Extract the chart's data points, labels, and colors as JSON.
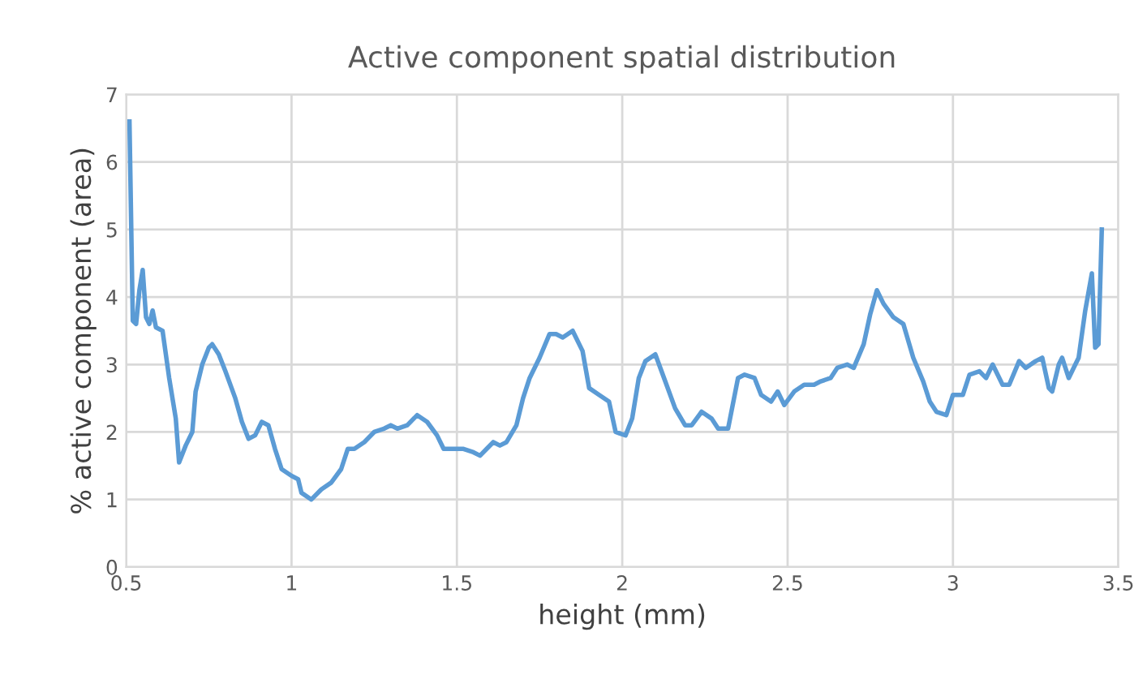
{
  "chart_data": {
    "type": "line",
    "title": "Active component spatial distribution",
    "xlabel": "height (mm)",
    "ylabel": "% active component (area)",
    "xlim": [
      0.5,
      3.5
    ],
    "xticks": [
      0.5,
      1,
      1.5,
      2,
      2.5,
      3,
      3.5
    ],
    "ylim": [
      0,
      7
    ],
    "yticks": [
      0,
      1,
      2,
      3,
      4,
      5,
      6,
      7
    ],
    "grid": true,
    "marker": "none",
    "line_style": "solid",
    "series": [
      {
        "color": "#5b9bd5",
        "x": [
          0.51,
          0.52,
          0.53,
          0.54,
          0.55,
          0.56,
          0.57,
          0.58,
          0.59,
          0.61,
          0.63,
          0.65,
          0.66,
          0.68,
          0.7,
          0.71,
          0.73,
          0.75,
          0.76,
          0.78,
          0.8,
          0.83,
          0.85,
          0.87,
          0.89,
          0.91,
          0.93,
          0.95,
          0.97,
          1.0,
          1.02,
          1.03,
          1.06,
          1.09,
          1.12,
          1.15,
          1.17,
          1.19,
          1.22,
          1.25,
          1.28,
          1.3,
          1.32,
          1.35,
          1.38,
          1.41,
          1.44,
          1.46,
          1.49,
          1.52,
          1.55,
          1.57,
          1.59,
          1.61,
          1.63,
          1.65,
          1.68,
          1.7,
          1.72,
          1.75,
          1.78,
          1.8,
          1.82,
          1.85,
          1.88,
          1.9,
          1.93,
          1.96,
          1.98,
          2.01,
          2.03,
          2.05,
          2.07,
          2.1,
          2.13,
          2.16,
          2.19,
          2.21,
          2.24,
          2.27,
          2.29,
          2.32,
          2.35,
          2.37,
          2.4,
          2.42,
          2.45,
          2.47,
          2.49,
          2.52,
          2.55,
          2.58,
          2.6,
          2.63,
          2.65,
          2.68,
          2.7,
          2.73,
          2.75,
          2.77,
          2.79,
          2.82,
          2.85,
          2.88,
          2.91,
          2.93,
          2.95,
          2.98,
          3.0,
          3.03,
          3.05,
          3.08,
          3.1,
          3.12,
          3.15,
          3.17,
          3.2,
          3.22,
          3.25,
          3.27,
          3.29,
          3.3,
          3.32,
          3.33,
          3.35,
          3.37,
          3.38,
          3.4,
          3.42,
          3.43,
          3.44,
          3.45
        ],
        "values": [
          6.6,
          3.65,
          3.6,
          4.1,
          4.4,
          3.7,
          3.6,
          3.8,
          3.55,
          3.5,
          2.8,
          2.2,
          1.55,
          1.8,
          2.0,
          2.6,
          3.0,
          3.25,
          3.3,
          3.15,
          2.9,
          2.5,
          2.15,
          1.9,
          1.95,
          2.15,
          2.1,
          1.75,
          1.45,
          1.35,
          1.3,
          1.1,
          1.0,
          1.15,
          1.25,
          1.45,
          1.75,
          1.75,
          1.85,
          2.0,
          2.05,
          2.1,
          2.05,
          2.1,
          2.25,
          2.15,
          1.95,
          1.75,
          1.75,
          1.75,
          1.7,
          1.65,
          1.75,
          1.85,
          1.8,
          1.85,
          2.1,
          2.5,
          2.8,
          3.1,
          3.45,
          3.45,
          3.4,
          3.5,
          3.2,
          2.65,
          2.55,
          2.45,
          2.0,
          1.95,
          2.2,
          2.8,
          3.05,
          3.15,
          2.75,
          2.35,
          2.1,
          2.1,
          2.3,
          2.2,
          2.05,
          2.05,
          2.8,
          2.85,
          2.8,
          2.55,
          2.45,
          2.6,
          2.4,
          2.6,
          2.7,
          2.7,
          2.75,
          2.8,
          2.95,
          3.0,
          2.95,
          3.3,
          3.75,
          4.1,
          3.9,
          3.7,
          3.6,
          3.1,
          2.75,
          2.45,
          2.3,
          2.25,
          2.55,
          2.55,
          2.85,
          2.9,
          2.8,
          3.0,
          2.7,
          2.7,
          3.05,
          2.95,
          3.05,
          3.1,
          2.65,
          2.6,
          3.0,
          3.1,
          2.8,
          3.0,
          3.1,
          3.8,
          4.35,
          3.25,
          3.3,
          5.0
        ]
      }
    ]
  }
}
